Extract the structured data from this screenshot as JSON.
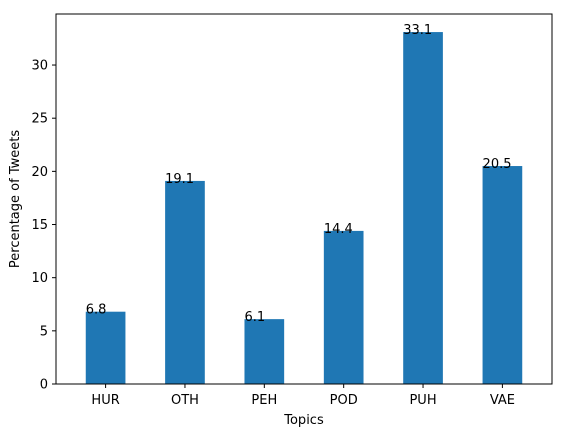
{
  "chart_data": {
    "type": "bar",
    "categories": [
      "HUR",
      "OTH",
      "PEH",
      "POD",
      "PUH",
      "VAE"
    ],
    "values": [
      6.8,
      19.1,
      6.1,
      14.4,
      33.1,
      20.5
    ],
    "data_labels": [
      "6.8",
      "19.1",
      "6.1",
      "14.4",
      "33.1",
      "20.5"
    ],
    "xlabel": "Topics",
    "ylabel": "Percentage of Tweets",
    "ylim": [
      0,
      34.8
    ],
    "yticks": [
      0,
      5,
      10,
      15,
      20,
      25,
      30
    ],
    "ytick_labels": [
      "0",
      "5",
      "10",
      "15",
      "20",
      "25",
      "30"
    ],
    "bar_color": "#1f77b4",
    "grid": false,
    "legend": "none"
  }
}
